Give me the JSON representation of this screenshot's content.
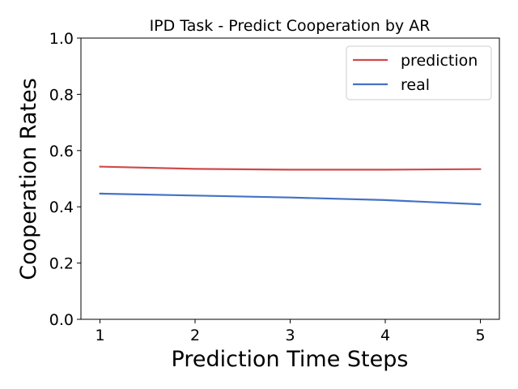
{
  "chart_data": {
    "type": "line",
    "title": "IPD Task - Predict Cooperation by AR",
    "xlabel": "Prediction Time Steps",
    "ylabel": "Cooperation Rates",
    "x": [
      1,
      2,
      3,
      4,
      5
    ],
    "x_ticks": [
      "1",
      "2",
      "3",
      "4",
      "5"
    ],
    "xlim": [
      0.8,
      5.2
    ],
    "ylim": [
      0.0,
      1.0
    ],
    "y_ticks": [
      "0.0",
      "0.2",
      "0.4",
      "0.6",
      "0.8",
      "1.0"
    ],
    "grid": false,
    "legend_position": "top-right",
    "series": [
      {
        "name": "prediction",
        "color": "#d04a4a",
        "values": [
          0.543,
          0.535,
          0.532,
          0.532,
          0.534
        ]
      },
      {
        "name": "real",
        "color": "#4472c4",
        "values": [
          0.447,
          0.44,
          0.433,
          0.424,
          0.409
        ]
      }
    ]
  }
}
